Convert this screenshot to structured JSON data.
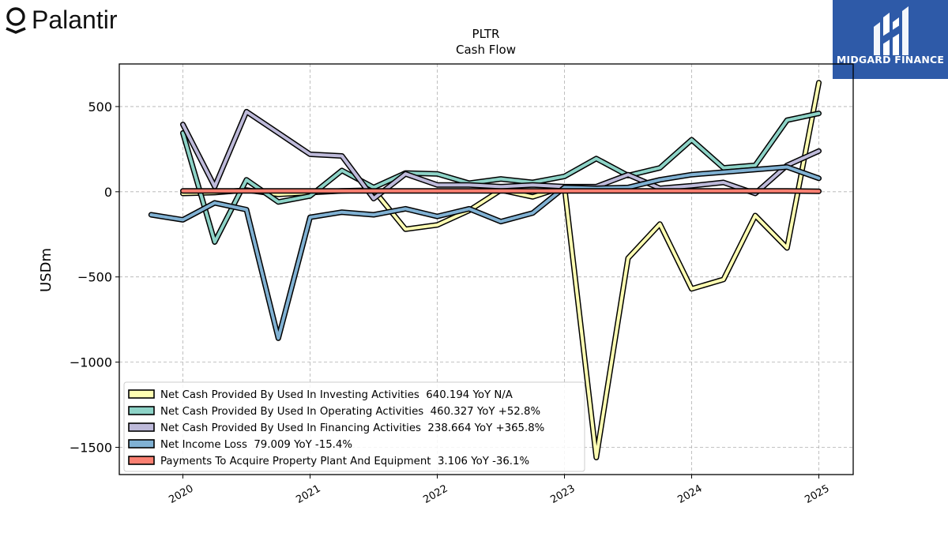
{
  "logos": {
    "left_text": "Palantir",
    "right_text": "MIDGARD FINANCE"
  },
  "chart_data": {
    "type": "line",
    "title": "PLTR",
    "subtitle": "Cash Flow",
    "xlabel": "",
    "ylabel": "USDm",
    "ylim": [
      -1660,
      750
    ],
    "xlim": [
      2019.5,
      2025.27
    ],
    "grid": true,
    "legend_position": "lower-left",
    "x_ticks": [
      2020,
      2021,
      2022,
      2023,
      2024,
      2025
    ],
    "x_tick_labels": [
      "2020",
      "2021",
      "2022",
      "2023",
      "2024",
      "2025"
    ],
    "y_ticks": [
      500,
      0,
      -500,
      -1000,
      -1500
    ],
    "y_tick_labels": [
      "500",
      "0",
      "−500",
      "−1000",
      "−1500"
    ],
    "series": [
      {
        "name": "Net Cash Provided By Used In Investing Activities",
        "legend": "Net Cash Provided By Used In Investing Activities  640.194 YoY N/A",
        "color": "#ffffb3",
        "x": [
          2020.0,
          2020.25,
          2020.5,
          2020.75,
          2021.0,
          2021.25,
          2021.5,
          2021.75,
          2022.0,
          2022.25,
          2022.5,
          2022.75,
          2023.0,
          2023.25,
          2023.5,
          2023.75,
          2024.0,
          2024.25,
          2024.5,
          2024.75,
          2025.0
        ],
        "y": [
          -10,
          -5,
          10,
          -15,
          -5,
          5,
          10,
          -220,
          -195,
          -110,
          10,
          -30,
          30,
          -1560,
          -390,
          -190,
          -570,
          -515,
          -140,
          -330,
          640
        ]
      },
      {
        "name": "Net Cash Provided By Used In Operating Activities",
        "legend": "Net Cash Provided By Used In Operating Activities  460.327 YoY +52.8%",
        "color": "#8dd3c7",
        "x": [
          2020.0,
          2020.25,
          2020.5,
          2020.75,
          2021.0,
          2021.25,
          2021.5,
          2021.75,
          2022.0,
          2022.25,
          2022.5,
          2022.75,
          2023.0,
          2023.25,
          2023.5,
          2023.75,
          2024.0,
          2024.25,
          2024.5,
          2024.75,
          2025.0
        ],
        "y": [
          345,
          -295,
          70,
          -60,
          -25,
          125,
          25,
          110,
          105,
          50,
          75,
          55,
          90,
          195,
          95,
          140,
          305,
          140,
          155,
          420,
          460
        ]
      },
      {
        "name": "Net Cash Provided By Used In Financing Activities",
        "legend": "Net Cash Provided By Used In Financing Activities  238.664 YoY +365.8%",
        "color": "#bebada",
        "x": [
          2020.0,
          2020.25,
          2020.5,
          2020.75,
          2021.0,
          2021.25,
          2021.5,
          2021.75,
          2022.0,
          2022.25,
          2022.5,
          2022.75,
          2023.0,
          2023.25,
          2023.5,
          2023.75,
          2024.0,
          2024.25,
          2024.5,
          2024.75,
          2025.0
        ],
        "y": [
          395,
          30,
          470,
          345,
          220,
          210,
          -40,
          105,
          40,
          40,
          30,
          40,
          30,
          30,
          100,
          20,
          35,
          55,
          -10,
          155,
          239
        ]
      },
      {
        "name": "Net Income Loss",
        "legend": "Net Income Loss  79.009 YoY -15.4%",
        "color": "#80b1d3",
        "x": [
          2019.75,
          2020.0,
          2020.25,
          2020.5,
          2020.75,
          2021.0,
          2021.25,
          2021.5,
          2021.75,
          2022.0,
          2022.25,
          2022.5,
          2022.75,
          2023.0,
          2023.25,
          2023.5,
          2023.75,
          2024.0,
          2024.25,
          2024.5,
          2024.75,
          2025.0
        ],
        "y": [
          -135,
          -165,
          -65,
          -105,
          -860,
          -150,
          -120,
          -135,
          -100,
          -145,
          -100,
          -175,
          -125,
          25,
          20,
          25,
          70,
          100,
          115,
          130,
          145,
          79
        ]
      },
      {
        "name": "Payments To Acquire Property Plant And Equipment",
        "legend": "Payments To Acquire Property Plant And Equipment  3.106 YoY -36.1%",
        "color": "#fb8072",
        "x": [
          2020.0,
          2020.25,
          2020.5,
          2020.75,
          2021.0,
          2021.25,
          2021.5,
          2021.75,
          2022.0,
          2022.25,
          2022.5,
          2022.75,
          2023.0,
          2023.25,
          2023.5,
          2023.75,
          2024.0,
          2024.25,
          2024.5,
          2024.75,
          2025.0
        ],
        "y": [
          5,
          5,
          5,
          5,
          5,
          5,
          5,
          5,
          5,
          5,
          5,
          5,
          5,
          5,
          5,
          5,
          5,
          5,
          5,
          5,
          3
        ]
      }
    ]
  }
}
